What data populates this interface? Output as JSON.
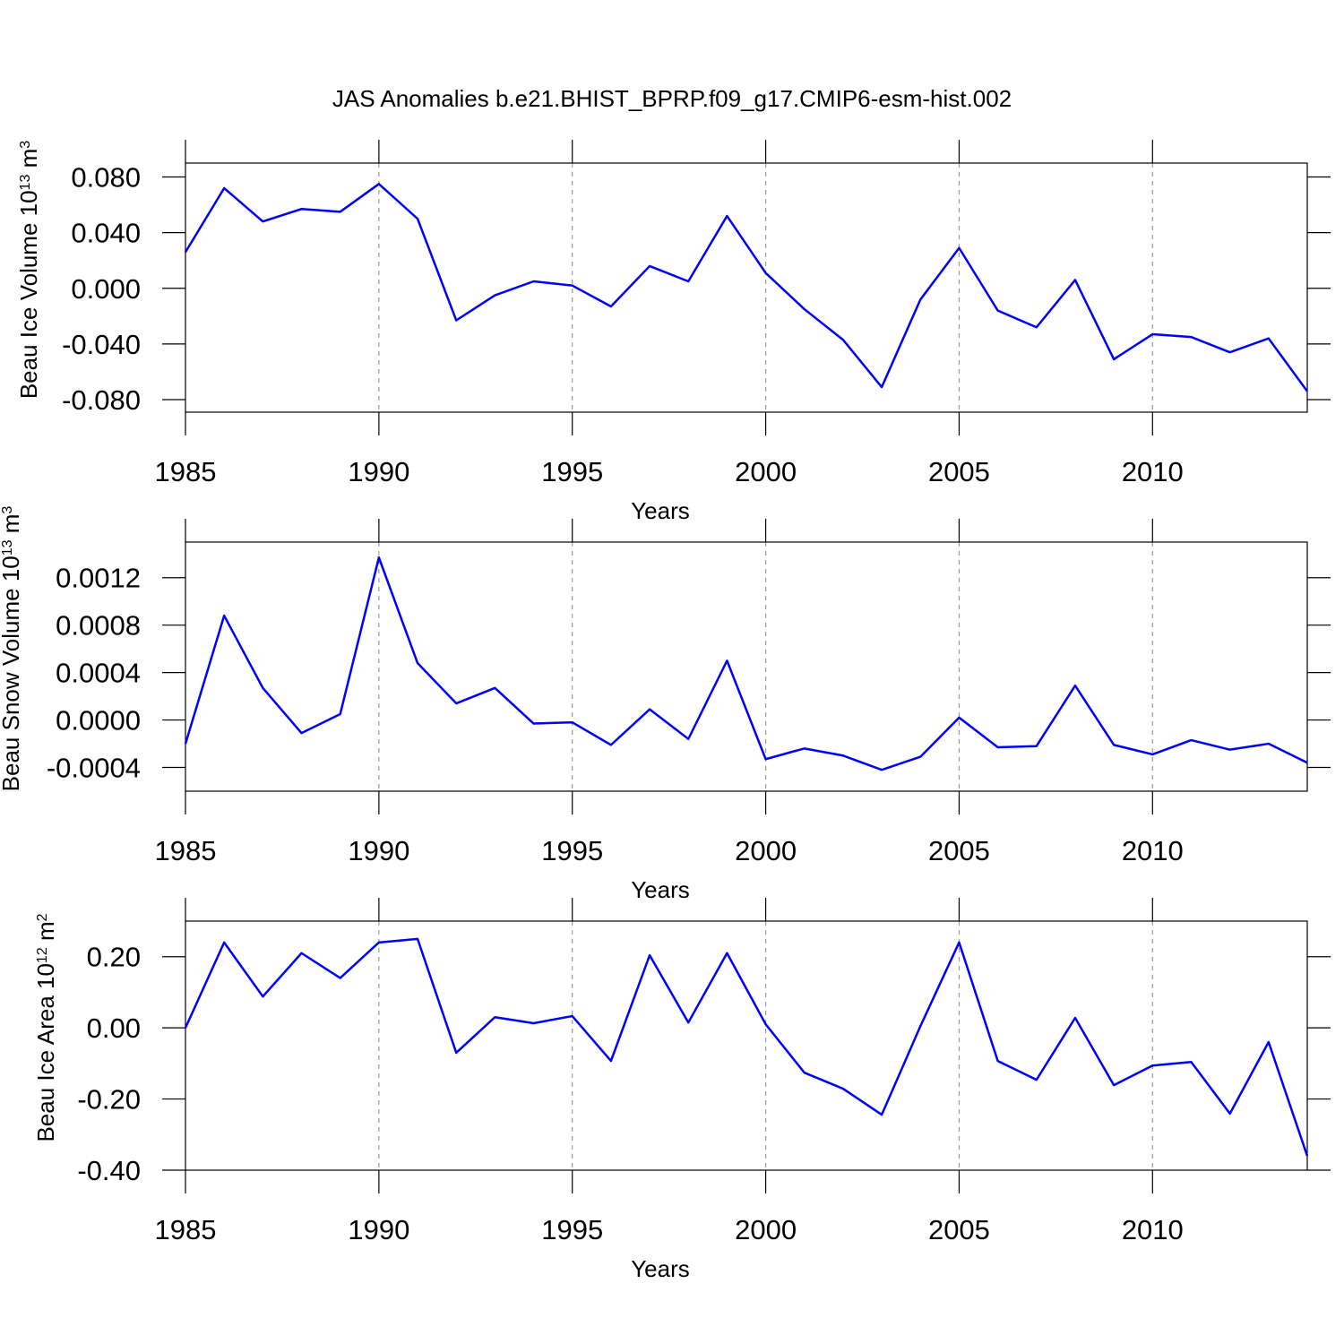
{
  "title": "JAS Anomalies b.e21.BHIST_BPRP.f09_g17.CMIP6-esm-hist.002",
  "chart_data": [
    {
      "type": "line",
      "ylabel": [
        "Beau Ice Volume 10",
        "13",
        " m",
        "3"
      ],
      "xlabel": "Years",
      "x": [
        1985,
        1986,
        1987,
        1988,
        1989,
        1990,
        1991,
        1992,
        1993,
        1994,
        1995,
        1996,
        1997,
        1998,
        1999,
        2000,
        2001,
        2002,
        2003,
        2004,
        2005,
        2006,
        2007,
        2008,
        2009,
        2010,
        2011,
        2012,
        2013,
        2014
      ],
      "values": [
        0.026,
        0.072,
        0.048,
        0.057,
        0.055,
        0.075,
        0.05,
        -0.023,
        -0.005,
        0.005,
        0.002,
        -0.013,
        0.016,
        0.005,
        0.052,
        0.011,
        -0.015,
        -0.037,
        -0.071,
        -0.008,
        0.029,
        -0.016,
        -0.028,
        0.006,
        -0.051,
        -0.033,
        -0.035,
        -0.046,
        -0.036,
        -0.074
      ],
      "color": "#0000ff",
      "xlim": [
        1985,
        2014
      ],
      "xticks": [
        1985,
        1990,
        1995,
        2000,
        2005,
        2010
      ],
      "ylim": [
        -0.089,
        0.09
      ],
      "yticks": [
        {
          "value": -0.08,
          "label": "-0.080"
        },
        {
          "value": -0.04,
          "label": "-0.040"
        },
        {
          "value": 0,
          "label": "0.000"
        },
        {
          "value": 0.04,
          "label": "0.040"
        },
        {
          "value": 0.08,
          "label": "0.080"
        }
      ],
      "xgrid": true
    },
    {
      "type": "line",
      "ylabel": [
        "Beau Snow Volume 10",
        "13",
        " m",
        "3"
      ],
      "xlabel": "Years",
      "x": [
        1985,
        1986,
        1987,
        1988,
        1989,
        1990,
        1991,
        1992,
        1993,
        1994,
        1995,
        1996,
        1997,
        1998,
        1999,
        2000,
        2001,
        2002,
        2003,
        2004,
        2005,
        2006,
        2007,
        2008,
        2009,
        2010,
        2011,
        2012,
        2013,
        2014
      ],
      "values": [
        -0.0002,
        0.00088,
        0.00027,
        -0.00011,
        5e-05,
        0.00137,
        0.00048,
        0.00014,
        0.00027,
        -3e-05,
        -2e-05,
        -0.00021,
        9e-05,
        -0.00016,
        0.0005,
        -0.00033,
        -0.00024,
        -0.0003,
        -0.00042,
        -0.00031,
        2e-05,
        -0.00023,
        -0.00022,
        0.00029,
        -0.00021,
        -0.00029,
        -0.00017,
        -0.00025,
        -0.0002,
        -0.00036
      ],
      "color": "#0000ff",
      "xlim": [
        1985,
        2014
      ],
      "xticks": [
        1985,
        1990,
        1995,
        2000,
        2005,
        2010
      ],
      "ylim": [
        -0.0006,
        0.0015
      ],
      "yticks": [
        {
          "value": -0.0004,
          "label": "-0.0004"
        },
        {
          "value": 0,
          "label": "0.0000"
        },
        {
          "value": 0.0004,
          "label": "0.0004"
        },
        {
          "value": 0.0008,
          "label": "0.0008"
        },
        {
          "value": 0.0012,
          "label": "0.0012"
        }
      ],
      "xgrid": true
    },
    {
      "type": "line",
      "ylabel": [
        "Beau Ice Area 10",
        "12",
        " m",
        "2"
      ],
      "xlabel": "Years",
      "x": [
        1985,
        1986,
        1987,
        1988,
        1989,
        1990,
        1991,
        1992,
        1993,
        1994,
        1995,
        1996,
        1997,
        1998,
        1999,
        2000,
        2001,
        2002,
        2003,
        2004,
        2005,
        2006,
        2007,
        2008,
        2009,
        2010,
        2011,
        2012,
        2013,
        2014
      ],
      "values": [
        0,
        0.24,
        0.088,
        0.21,
        0.14,
        0.24,
        0.25,
        -0.07,
        0.03,
        0.013,
        0.033,
        -0.093,
        0.204,
        0.015,
        0.21,
        0.01,
        -0.126,
        -0.171,
        -0.244,
        0.005,
        0.24,
        -0.093,
        -0.146,
        0.028,
        -0.161,
        -0.106,
        -0.096,
        -0.241,
        -0.04,
        -0.36
      ],
      "color": "#0000ff",
      "xlim": [
        1985,
        2014
      ],
      "xticks": [
        1985,
        1990,
        1995,
        2000,
        2005,
        2010
      ],
      "ylim": [
        -0.4,
        0.3
      ],
      "yticks": [
        {
          "value": -0.4,
          "label": "-0.40"
        },
        {
          "value": -0.2,
          "label": "-0.20"
        },
        {
          "value": 0,
          "label": "0.00"
        },
        {
          "value": 0.2,
          "label": "0.20"
        }
      ],
      "xgrid": true
    }
  ]
}
